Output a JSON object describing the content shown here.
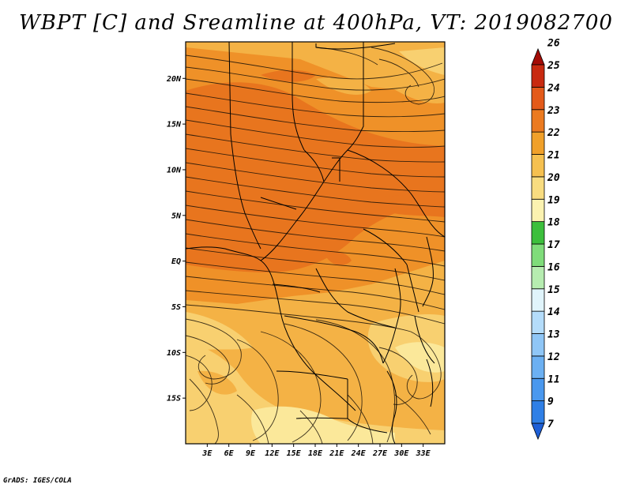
{
  "title": "WBPT [C] and Sreamline at 400hPa, VT: 2019082700",
  "credit": "GrADS: IGES/COLA",
  "map": {
    "lon_range": [
      0,
      36
    ],
    "lat_range": [
      -20,
      24
    ],
    "lat_ticks": [
      {
        "label": "20N",
        "lat": 20
      },
      {
        "label": "15N",
        "lat": 15
      },
      {
        "label": "10N",
        "lat": 10
      },
      {
        "label": "5N",
        "lat": 5
      },
      {
        "label": "EQ",
        "lat": 0
      },
      {
        "label": "5S",
        "lat": -5
      },
      {
        "label": "10S",
        "lat": -10
      },
      {
        "label": "15S",
        "lat": -15
      }
    ],
    "lon_ticks": [
      {
        "label": "3E",
        "lon": 3
      },
      {
        "label": "6E",
        "lon": 6
      },
      {
        "label": "9E",
        "lon": 9
      },
      {
        "label": "12E",
        "lon": 12
      },
      {
        "label": "15E",
        "lon": 15
      },
      {
        "label": "18E",
        "lon": 18
      },
      {
        "label": "21E",
        "lon": 21
      },
      {
        "label": "24E",
        "lon": 24
      },
      {
        "label": "27E",
        "lon": 27
      },
      {
        "label": "30E",
        "lon": 30
      },
      {
        "label": "33E",
        "lon": 33
      }
    ]
  },
  "colorbar": {
    "levels": [
      "7",
      "9",
      "11",
      "12",
      "13",
      "14",
      "15",
      "16",
      "17",
      "18",
      "19",
      "20",
      "21",
      "22",
      "23",
      "24",
      "25",
      "26"
    ],
    "colors": [
      "#1e5fd6",
      "#2f7fe6",
      "#4a98ee",
      "#6cb0f2",
      "#8fc6f6",
      "#b4dcfa",
      "#e0f4fb",
      "#b6ecb0",
      "#7fdc7a",
      "#3cbf3c",
      "#fbf2b0",
      "#f8dc80",
      "#f5c050",
      "#f0a02a",
      "#eb7a20",
      "#e35a1a",
      "#c82a10",
      "#a40c06"
    ]
  },
  "field_colors": {
    "c19": "#fbe89a",
    "c20": "#f8d070",
    "c21": "#f4b245",
    "c22": "#ef9128",
    "c23": "#e8751e"
  }
}
